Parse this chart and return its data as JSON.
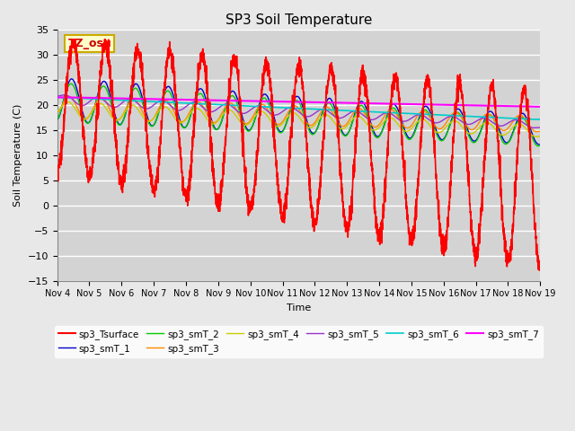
{
  "title": "SP3 Soil Temperature",
  "xlabel": "Time",
  "ylabel": "Soil Temperature (C)",
  "ylim": [
    -15,
    35
  ],
  "xlim": [
    0,
    15
  ],
  "x_tick_labels": [
    "Nov 4",
    "Nov 5",
    "Nov 6",
    "Nov 7",
    "Nov 8",
    "Nov 9",
    "Nov 10",
    "Nov 11",
    "Nov 12",
    "Nov 13",
    "Nov 14",
    "Nov 15",
    "Nov 16",
    "Nov 17",
    "Nov 18",
    "Nov 19"
  ],
  "x_tick_positions": [
    0,
    1,
    2,
    3,
    4,
    5,
    6,
    7,
    8,
    9,
    10,
    11,
    12,
    13,
    14,
    15
  ],
  "yticks": [
    -15,
    -10,
    -5,
    0,
    5,
    10,
    15,
    20,
    25,
    30,
    35
  ],
  "bg_color": "#e8e8e8",
  "plot_bg_color": "#d3d3d3",
  "grid_color": "#ffffff",
  "annotation_text": "TZ_osu",
  "annotation_bg": "#ffffcc",
  "annotation_border": "#ccaa00",
  "series_colors": {
    "sp3_Tsurface": "#ff0000",
    "sp3_smT_1": "#0000cc",
    "sp3_smT_2": "#00cc00",
    "sp3_smT_3": "#ff8800",
    "sp3_smT_4": "#cccc00",
    "sp3_smT_5": "#9933cc",
    "sp3_smT_6": "#00cccc",
    "sp3_smT_7": "#ff00ff"
  },
  "series_lw": {
    "sp3_Tsurface": 1.2,
    "sp3_smT_1": 1.0,
    "sp3_smT_2": 1.0,
    "sp3_smT_3": 1.0,
    "sp3_smT_4": 1.0,
    "sp3_smT_5": 1.0,
    "sp3_smT_6": 1.2,
    "sp3_smT_7": 1.5
  }
}
